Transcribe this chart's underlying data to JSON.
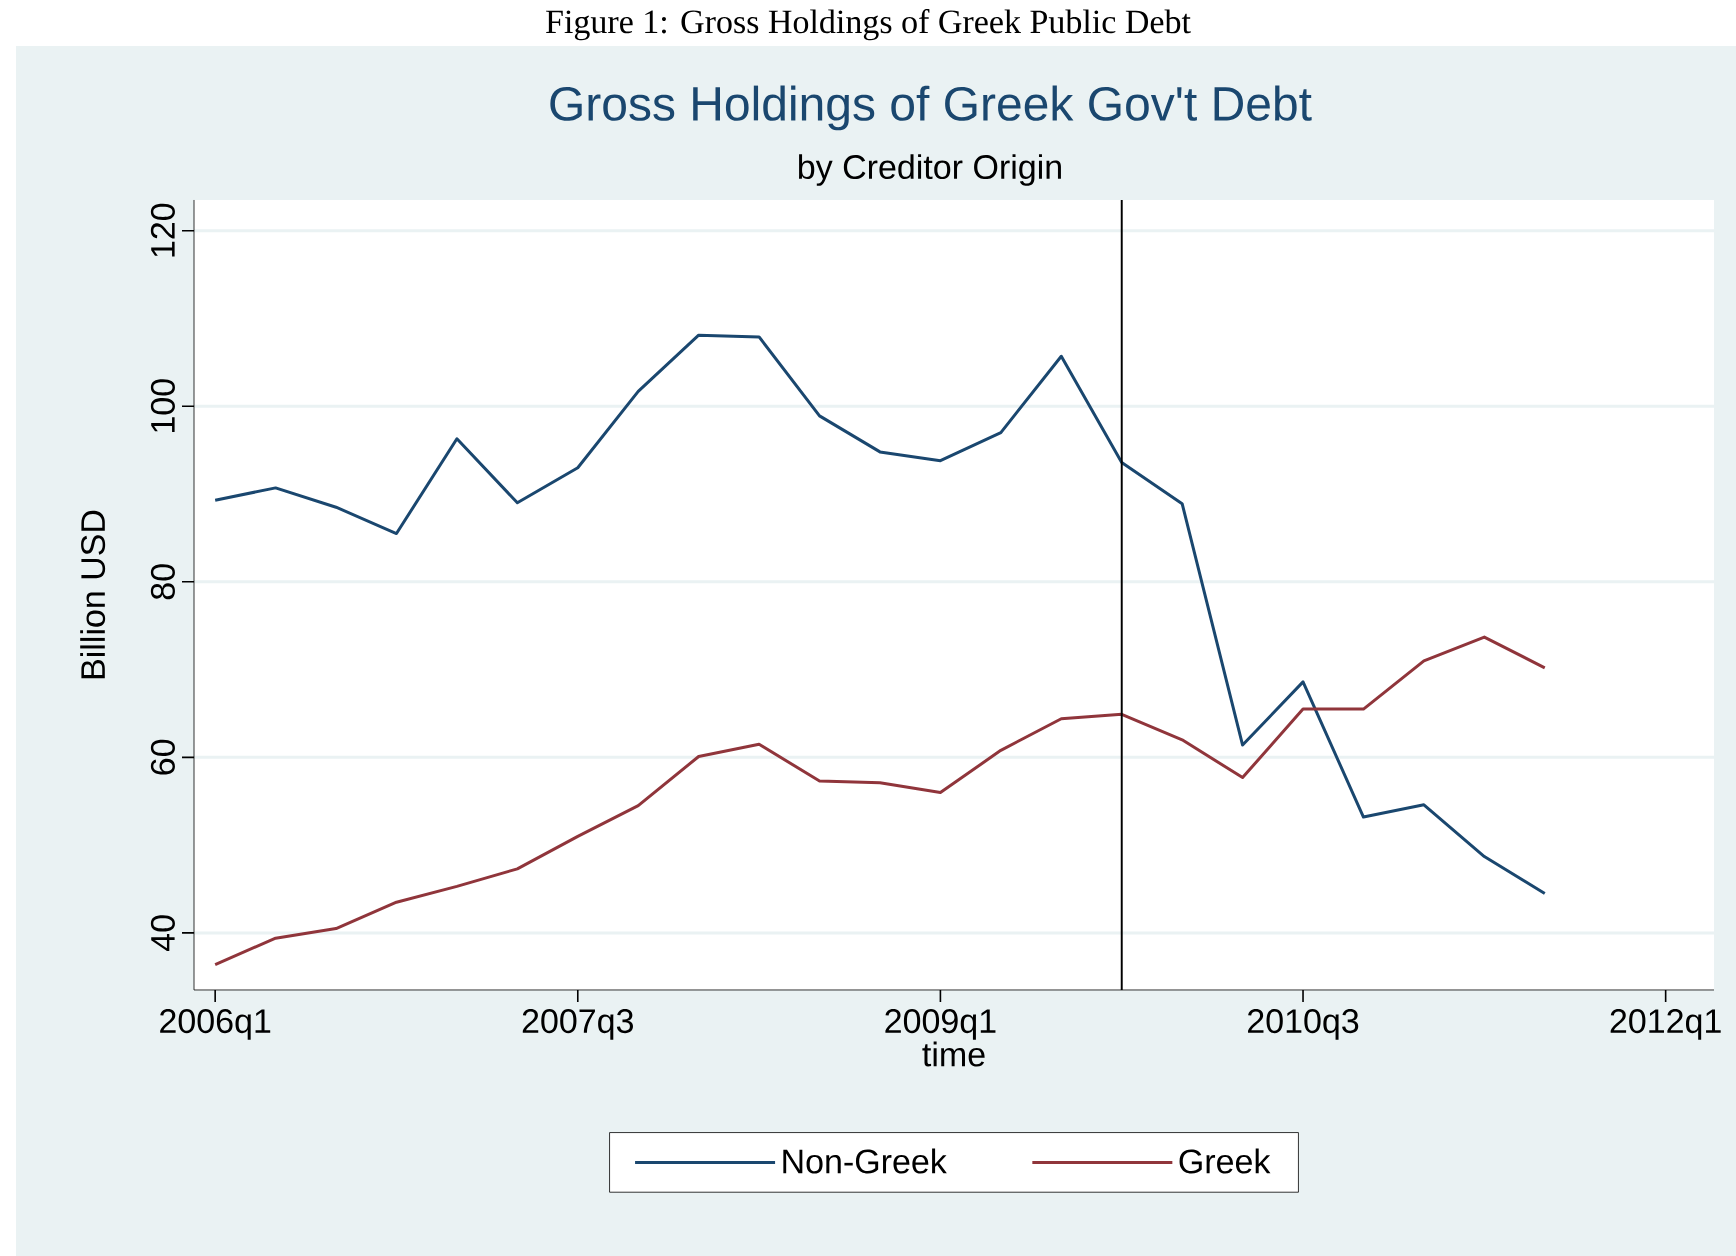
{
  "chart_data": {
    "type": "line",
    "title": "Gross Holdings of Greek Gov't Debt",
    "subtitle": "by Creditor Origin",
    "xlabel": "time",
    "ylabel": "Billion USD",
    "annotations": [
      "Figure 1: Gross Holdings of Greek Public Debt"
    ],
    "categories": [
      "2006q1",
      null,
      null,
      null,
      null,
      null,
      "2007q3",
      null,
      null,
      null,
      null,
      null,
      "2009q1",
      null,
      null,
      null,
      null,
      null,
      "2010q3",
      null,
      null,
      null,
      null,
      null,
      "2012q1"
    ],
    "series": [
      {
        "name": "Non-Greek",
        "color": "#1a476f",
        "values": [
          89.3,
          90.7,
          88.5,
          85.5,
          96.3,
          89,
          93,
          101.7,
          108.1,
          107.9,
          98.9,
          94.8,
          93.8,
          97,
          105.7,
          93.6,
          88.9,
          61.4,
          68.6,
          53.2,
          54.6,
          48.7,
          44.5,
          null,
          null
        ]
      },
      {
        "name": "Greek",
        "color": "#90353b",
        "values": [
          36.4,
          39.4,
          40.5,
          43.5,
          45.3,
          47.3,
          51,
          54.5,
          60.1,
          61.5,
          57.3,
          57.1,
          56,
          60.8,
          64.4,
          64.9,
          62,
          57.7,
          65.5,
          65.5,
          71,
          73.7,
          70.2,
          null,
          null
        ]
      }
    ],
    "ylim": [
      33.5,
      123.5
    ],
    "yticks": [
      40,
      60,
      80,
      100,
      120
    ],
    "grid": "y",
    "legend": "bottom",
    "line_style": "solid"
  }
}
